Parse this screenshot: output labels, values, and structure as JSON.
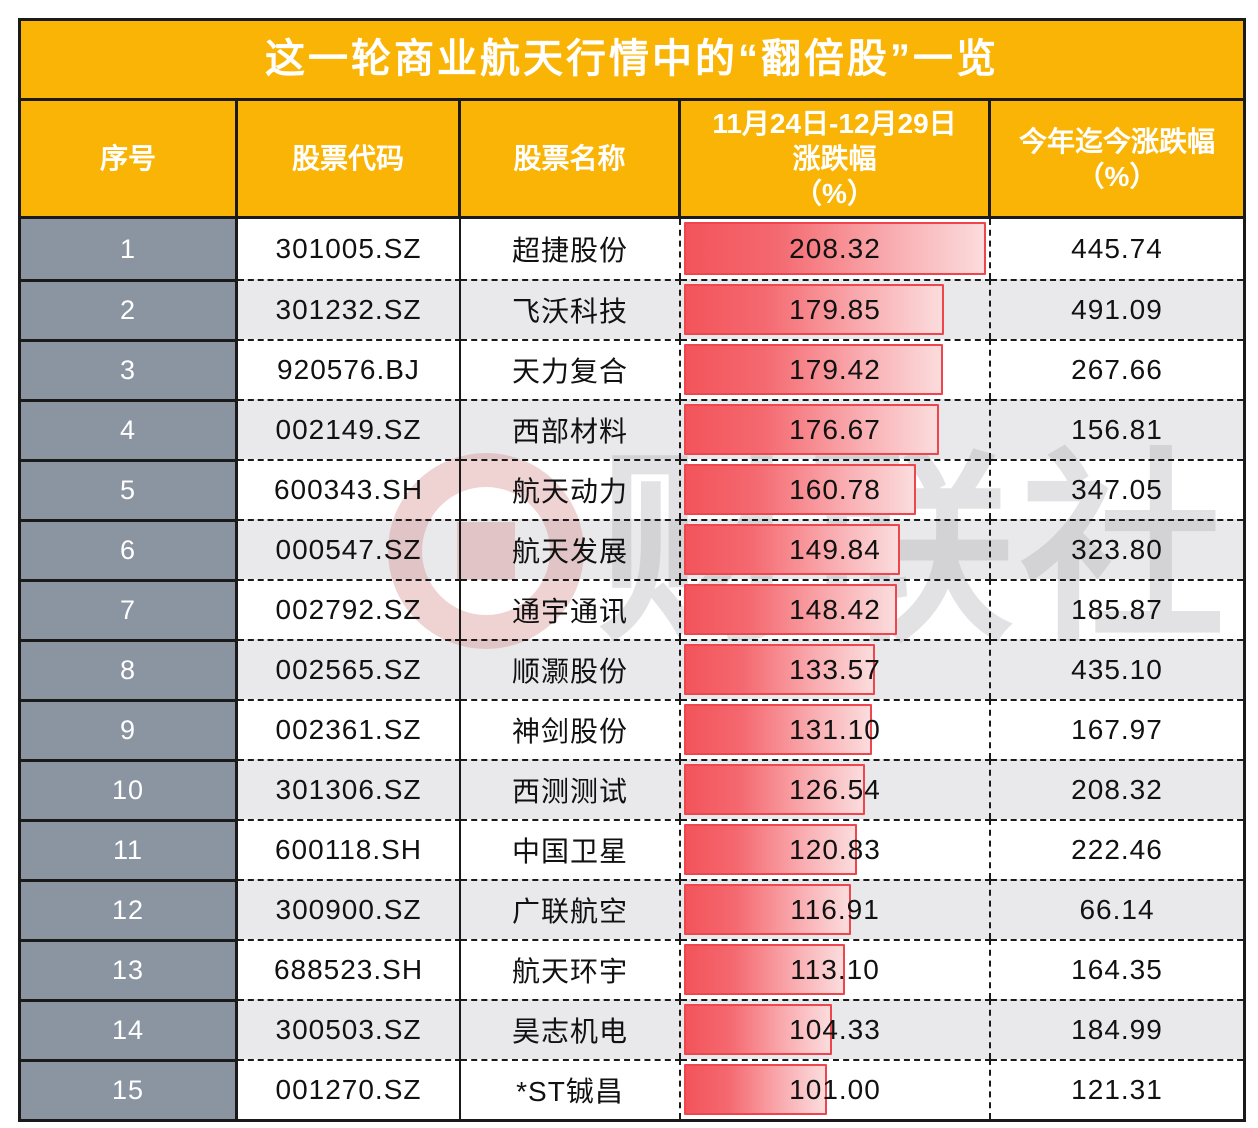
{
  "chart_data": {
    "type": "table",
    "title": "这一轮商业航天行情中的“翻倍股”一览",
    "header": {
      "seq": "序号",
      "code": "股票代码",
      "name": "股票名称",
      "change_line1": "11月24日-12月29日",
      "change_line2": "涨跌幅",
      "change_line3": "（%）",
      "ytd_line1": "今年迄今涨跌幅",
      "ytd_line2": "（%）"
    },
    "bar_column": "11月24日-12月29日涨跌幅（%）",
    "bar_scale_max": 208.32,
    "rows": [
      {
        "seq": "1",
        "code": "301005.SZ",
        "name": "超捷股份",
        "change": "208.32",
        "ytd": "445.74"
      },
      {
        "seq": "2",
        "code": "301232.SZ",
        "name": "飞沃科技",
        "change": "179.85",
        "ytd": "491.09"
      },
      {
        "seq": "3",
        "code": "920576.BJ",
        "name": "天力复合",
        "change": "179.42",
        "ytd": "267.66"
      },
      {
        "seq": "4",
        "code": "002149.SZ",
        "name": "西部材料",
        "change": "176.67",
        "ytd": "156.81"
      },
      {
        "seq": "5",
        "code": "600343.SH",
        "name": "航天动力",
        "change": "160.78",
        "ytd": "347.05"
      },
      {
        "seq": "6",
        "code": "000547.SZ",
        "name": "航天发展",
        "change": "149.84",
        "ytd": "323.80"
      },
      {
        "seq": "7",
        "code": "002792.SZ",
        "name": "通宇通讯",
        "change": "148.42",
        "ytd": "185.87"
      },
      {
        "seq": "8",
        "code": "002565.SZ",
        "name": "顺灏股份",
        "change": "133.57",
        "ytd": "435.10"
      },
      {
        "seq": "9",
        "code": "002361.SZ",
        "name": "神剑股份",
        "change": "131.10",
        "ytd": "167.97"
      },
      {
        "seq": "10",
        "code": "301306.SZ",
        "name": "西测测试",
        "change": "126.54",
        "ytd": "208.32"
      },
      {
        "seq": "11",
        "code": "600118.SH",
        "name": "中国卫星",
        "change": "120.83",
        "ytd": "222.46"
      },
      {
        "seq": "12",
        "code": "300900.SZ",
        "name": "广联航空",
        "change": "116.91",
        "ytd": "66.14"
      },
      {
        "seq": "13",
        "code": "688523.SH",
        "name": "航天环宇",
        "change": "113.10",
        "ytd": "164.35"
      },
      {
        "seq": "14",
        "code": "300503.SZ",
        "name": "昊志机电",
        "change": "104.33",
        "ytd": "184.99"
      },
      {
        "seq": "15",
        "code": "001270.SZ",
        "name": "*ST铖昌",
        "change": "101.00",
        "ytd": "121.31"
      }
    ],
    "watermark": "财联社"
  },
  "colors": {
    "header_bg": "#F9B406",
    "header_text": "#FFFFFF",
    "seq_col_bg": "#8B94A1",
    "row_alt_bg": "#E9E9EB",
    "bar_gradient_start": "#F3545B",
    "bar_gradient_end": "#FBDCDD",
    "bar_border": "#EF464E",
    "grid": "#1A1A1A",
    "value_text": "#111111"
  }
}
